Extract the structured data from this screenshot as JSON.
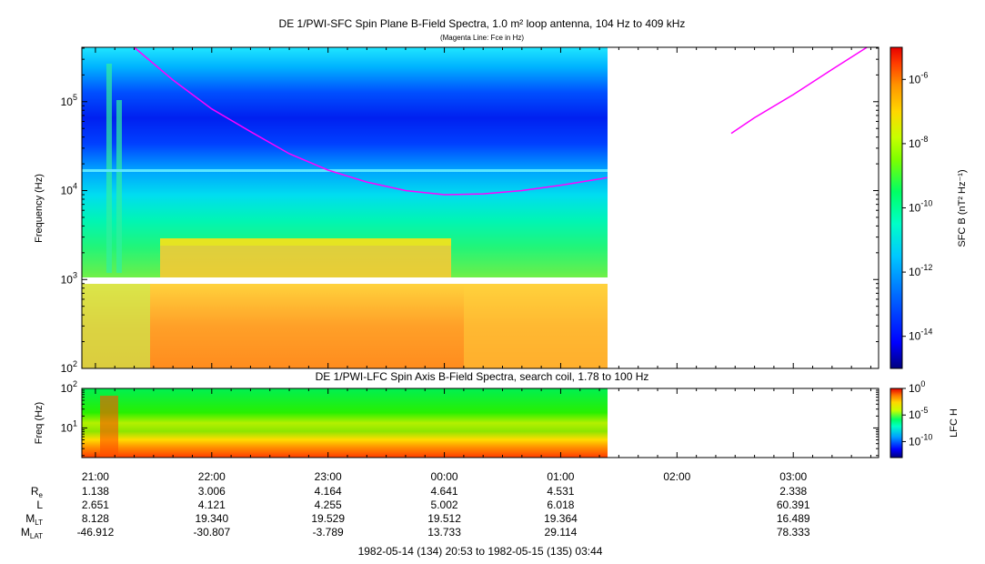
{
  "chart_data": [
    {
      "type": "heatmap",
      "title": "DE 1/PWI-SFC  Spin Plane B-Field Spectra, 1.0 m² loop antenna, 104 Hz to 409 kHz",
      "subtitle": "(Magenta Line: Fce in Hz)",
      "ylabel": "Frequency (Hz)",
      "yscale": "log",
      "ylim": [
        100,
        409000
      ],
      "y_ticks": [
        "10^2",
        "10^3",
        "10^4",
        "10^5"
      ],
      "colorbar_label": "SFC B (nT² Hz⁻¹)",
      "colorbar_ticks": [
        "10^-14",
        "10^-12",
        "10^-10",
        "10^-8",
        "10^-6"
      ],
      "colorbar_range": [
        "1e-15",
        "1e-5"
      ],
      "data_end": "01:24",
      "gap_frequency_hz": 1000,
      "magenta_line": {
        "name": "Fce in Hz",
        "segment1": {
          "x": [
            "21:20",
            "21:40",
            "22:00",
            "22:20",
            "22:40",
            "23:00",
            "23:20",
            "23:40",
            "00:00",
            "00:20",
            "00:40",
            "01:00",
            "01:20",
            "01:24"
          ],
          "y": [
            409000,
            175000,
            83000,
            46000,
            26000,
            17000,
            12500,
            10000,
            9000,
            9200,
            10000,
            11500,
            13500,
            14000
          ]
        },
        "segment2": {
          "x": [
            "02:28",
            "02:40",
            "03:00",
            "03:20",
            "03:38"
          ],
          "y": [
            44000,
            66000,
            120000,
            230000,
            409000
          ]
        }
      }
    },
    {
      "type": "heatmap",
      "title": "DE 1/PWI-LFC  Spin Axis B-Field Spectra, search coil, 1.78 to 100 Hz",
      "ylabel": "Freq (Hz)",
      "yscale": "log",
      "ylim": [
        1.78,
        100
      ],
      "y_ticks": [
        "10^1",
        "10^2"
      ],
      "colorbar_label": "LFC H",
      "colorbar_ticks": [
        "10^-10",
        "10^-5",
        "10^0"
      ],
      "data_end": "01:24"
    }
  ],
  "time_axis": {
    "start": "20:53",
    "end": "03:44",
    "ticks": [
      "21:00",
      "22:00",
      "23:00",
      "00:00",
      "01:00",
      "02:00",
      "03:00"
    ]
  },
  "ephemeris": {
    "rows": [
      {
        "label": "R",
        "sub": "e",
        "values": [
          "1.138",
          "3.006",
          "4.164",
          "4.641",
          "4.531",
          "",
          "2.338"
        ]
      },
      {
        "label": "L",
        "sub": "",
        "values": [
          "2.651",
          "4.121",
          "4.255",
          "5.002",
          "6.018",
          "",
          "60.391"
        ]
      },
      {
        "label": "M",
        "sub": "LT",
        "values": [
          "8.128",
          "19.340",
          "19.529",
          "19.512",
          "19.364",
          "",
          "16.489"
        ]
      },
      {
        "label": "M",
        "sub": "LAT",
        "values": [
          "-46.912",
          "-30.807",
          "-3.789",
          "13.733",
          "29.114",
          "",
          "78.333"
        ]
      }
    ]
  },
  "footer": "1982-05-14 (134) 20:53 to 1982-05-15 (135) 03:44",
  "colors": {
    "fce_line": "#ff00ff",
    "background": "#ffffff"
  }
}
